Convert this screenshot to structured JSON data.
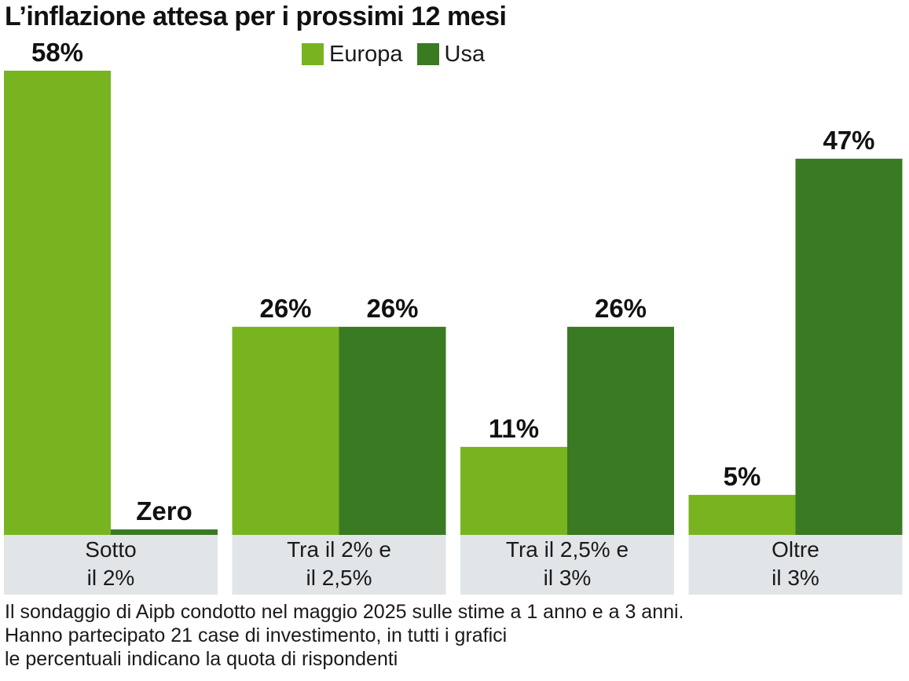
{
  "chart_data": {
    "type": "bar",
    "title": "L’inflazione attesa per i prossimi 12 mesi",
    "categories": [
      [
        "Sotto",
        "il 2%"
      ],
      [
        "Tra il 2% e",
        "il 2,5%"
      ],
      [
        "Tra il 2,5% e",
        "il 3%"
      ],
      [
        "Oltre",
        "il 3%"
      ]
    ],
    "series": [
      {
        "name": "Europa",
        "color": "#78b41f",
        "values": [
          58,
          26,
          11,
          5
        ],
        "labels": [
          "58%",
          "26%",
          "11%",
          "5%"
        ]
      },
      {
        "name": "Usa",
        "color": "#3a7a23",
        "values": [
          0,
          26,
          26,
          47
        ],
        "labels": [
          "Zero",
          "26%",
          "26%",
          "47%"
        ]
      }
    ],
    "ylim": [
      0,
      58
    ],
    "xlabel": "",
    "ylabel": "",
    "grid": false,
    "legend_position": "top-center",
    "category_band_color": "#e1e5e8"
  },
  "footnote": [
    "Il sondaggio di Aipb condotto nel maggio 2025 sulle stime a 1 anno e a 3 anni.",
    "Hanno partecipato 21 case di investimento, in tutti i grafici",
    "le percentuali indicano la quota di rispondenti"
  ]
}
